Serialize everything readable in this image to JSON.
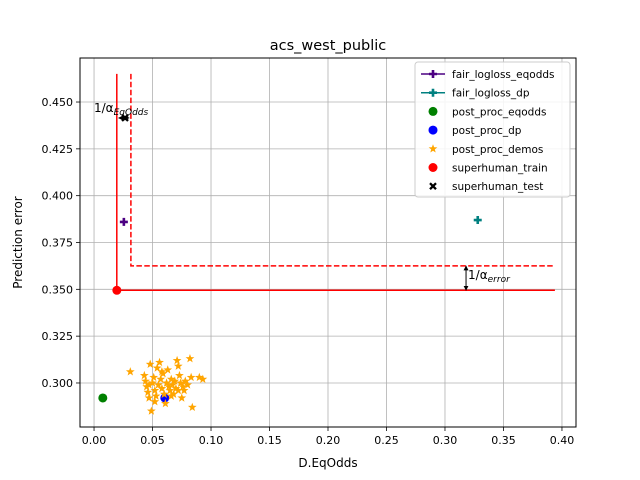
{
  "chart_data": {
    "type": "scatter",
    "title": "acs_west_public",
    "xlabel": "D.EqOdds",
    "ylabel": "Prediction error",
    "xlim": [
      -0.012,
      0.412
    ],
    "ylim": [
      0.2765,
      0.4735
    ],
    "x_ticks": [
      0.0,
      0.05,
      0.1,
      0.15,
      0.2,
      0.25,
      0.3,
      0.35,
      0.4
    ],
    "x_tick_labels": [
      "0.00",
      "0.05",
      "0.10",
      "0.15",
      "0.20",
      "0.25",
      "0.30",
      "0.35",
      "0.40"
    ],
    "y_ticks": [
      0.3,
      0.325,
      0.35,
      0.375,
      0.4,
      0.425,
      0.45
    ],
    "y_tick_labels": [
      "0.300",
      "0.325",
      "0.350",
      "0.375",
      "0.400",
      "0.425",
      "0.450"
    ],
    "grid": true,
    "legend_position": "top-right",
    "series": [
      {
        "name": "fair_logloss_eqodds",
        "marker": "plus",
        "color": "#4b0082",
        "points": [
          [
            0.0255,
            0.386
          ]
        ]
      },
      {
        "name": "fair_logloss_dp",
        "marker": "plus",
        "color": "#008080",
        "points": [
          [
            0.328,
            0.387
          ]
        ]
      },
      {
        "name": "post_proc_eqodds",
        "marker": "circle",
        "color": "#008000",
        "points": [
          [
            0.0075,
            0.292
          ]
        ]
      },
      {
        "name": "post_proc_dp",
        "marker": "circle",
        "color": "#0000ff",
        "points": [
          [
            0.0605,
            0.292
          ]
        ]
      },
      {
        "name": "post_proc_demos",
        "marker": "star",
        "color": "#ffa500",
        "points": [
          [
            0.031,
            0.306
          ],
          [
            0.043,
            0.304
          ],
          [
            0.044,
            0.301
          ],
          [
            0.045,
            0.298
          ],
          [
            0.046,
            0.295
          ],
          [
            0.047,
            0.292
          ],
          [
            0.048,
            0.31
          ],
          [
            0.049,
            0.285
          ],
          [
            0.05,
            0.3
          ],
          [
            0.051,
            0.303
          ],
          [
            0.052,
            0.296
          ],
          [
            0.053,
            0.293
          ],
          [
            0.054,
            0.308
          ],
          [
            0.055,
            0.299
          ],
          [
            0.056,
            0.311
          ],
          [
            0.057,
            0.302
          ],
          [
            0.058,
            0.297
          ],
          [
            0.059,
            0.305
          ],
          [
            0.06,
            0.294
          ],
          [
            0.061,
            0.289
          ],
          [
            0.062,
            0.3
          ],
          [
            0.063,
            0.307
          ],
          [
            0.064,
            0.298
          ],
          [
            0.065,
            0.296
          ],
          [
            0.066,
            0.302
          ],
          [
            0.067,
            0.299
          ],
          [
            0.068,
            0.294
          ],
          [
            0.069,
            0.301
          ],
          [
            0.07,
            0.297
          ],
          [
            0.071,
            0.312
          ],
          [
            0.072,
            0.309
          ],
          [
            0.073,
            0.304
          ],
          [
            0.074,
            0.3
          ],
          [
            0.075,
            0.292
          ],
          [
            0.076,
            0.298
          ],
          [
            0.077,
            0.296
          ],
          [
            0.078,
            0.301
          ],
          [
            0.08,
            0.299
          ],
          [
            0.082,
            0.313
          ],
          [
            0.083,
            0.303
          ],
          [
            0.084,
            0.287
          ],
          [
            0.09,
            0.303
          ],
          [
            0.093,
            0.302
          ],
          [
            0.047,
            0.299
          ],
          [
            0.052,
            0.29
          ],
          [
            0.058,
            0.306
          ],
          [
            0.066,
            0.293
          ],
          [
            0.072,
            0.296
          ]
        ]
      },
      {
        "name": "superhuman_train",
        "marker": "circle",
        "color": "#ff0000",
        "points": [
          [
            0.0195,
            0.3495
          ]
        ]
      },
      {
        "name": "superhuman_test",
        "marker": "x",
        "color": "#000000",
        "points": [
          [
            0.0265,
            0.4415
          ]
        ]
      }
    ],
    "lines": [
      {
        "style": "solid",
        "color": "#ff0000",
        "points": [
          [
            0.0195,
            0.465
          ],
          [
            0.0195,
            0.3495
          ],
          [
            0.394,
            0.3495
          ]
        ]
      },
      {
        "style": "dashed",
        "color": "#ff0000",
        "points": [
          [
            0.0315,
            0.465
          ],
          [
            0.0315,
            0.3625
          ],
          [
            0.394,
            0.3625
          ]
        ]
      }
    ],
    "annotations": {
      "eqodds": {
        "prefix": "1/α",
        "subscript": "EqOdds",
        "arrow_x": [
          0.021,
          0.03
        ],
        "arrow_y": 0.4415
      },
      "error": {
        "prefix": "1/α",
        "subscript": "error",
        "arrow_x": 0.318,
        "arrow_y": [
          0.3625,
          0.3495
        ]
      }
    }
  }
}
